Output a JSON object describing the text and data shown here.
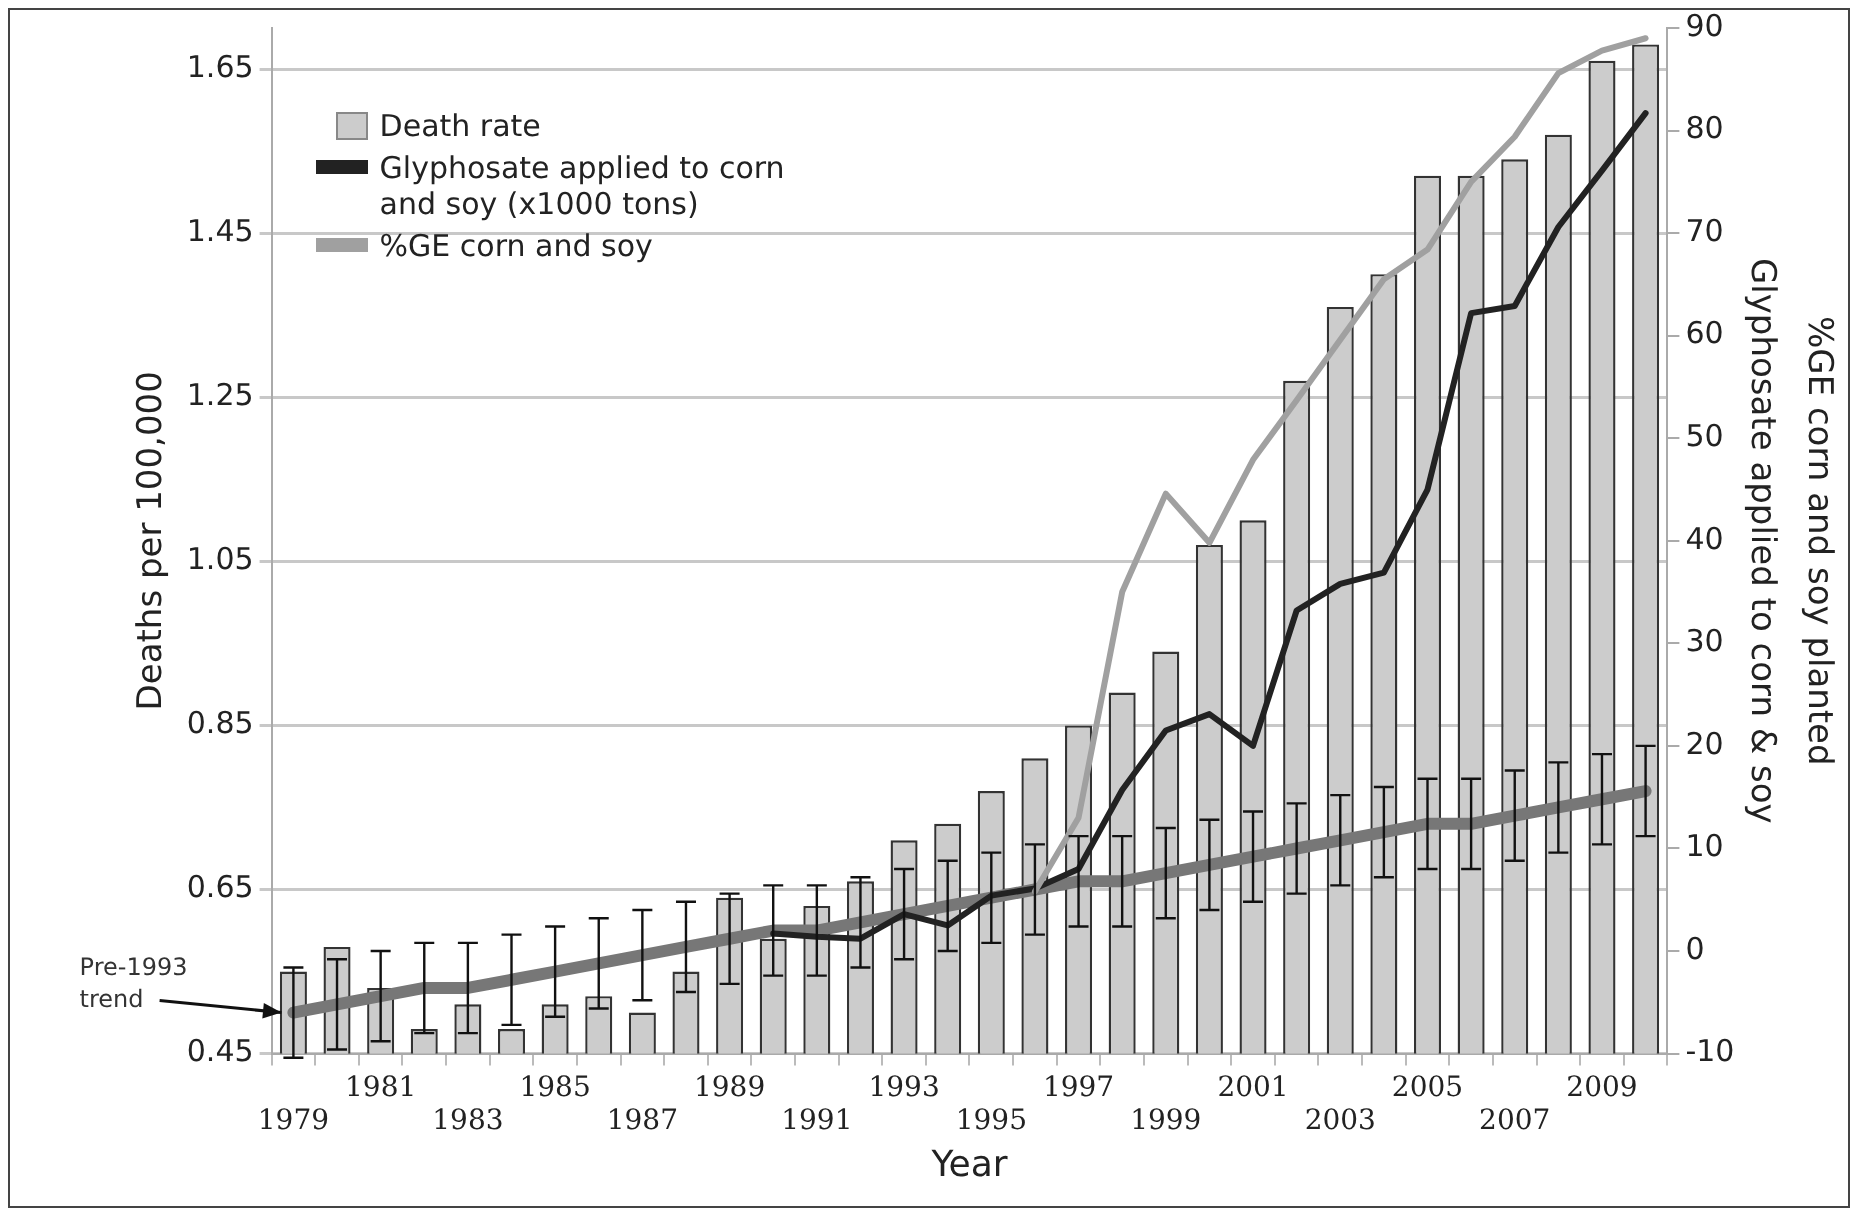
{
  "chart_data": {
    "type": "bar",
    "xlabel": "Year",
    "ylabel": "Deaths per 100,000",
    "y2label": "Glyphosate applied to corn & soy",
    "annotations": [
      "%GE corn and soy planted"
    ],
    "categories": [
      "1979",
      null,
      "1981",
      null,
      "1983",
      null,
      "1985",
      null,
      "1987",
      null,
      "1989",
      null,
      "1991",
      null,
      "1993",
      null,
      "1995",
      null,
      "1997",
      null,
      "1999",
      null,
      "2001",
      null,
      "2003",
      null,
      "2005",
      null,
      "2007",
      null,
      "2009",
      null
    ],
    "series": [
      {
        "name": "Death rate",
        "color": "#cccccc",
        "values": [
          0.55,
          0.58,
          0.53,
          0.48,
          0.51,
          0.48,
          0.51,
          0.52,
          0.5,
          0.55,
          0.64,
          0.59,
          0.63,
          0.66,
          0.71,
          0.73,
          0.77,
          0.81,
          0.85,
          0.89,
          0.94,
          1.07,
          1.1,
          1.27,
          1.36,
          1.4,
          1.52,
          1.52,
          1.54,
          1.57,
          1.66,
          1.68
        ]
      },
      {
        "type": "line",
        "name": "Glyphosate applied to corn and soy (x1000 tons)",
        "color": "#222222",
        "axis": "y2",
        "values": [
          null,
          null,
          null,
          null,
          null,
          null,
          null,
          null,
          null,
          null,
          null,
          1.7,
          1.4,
          1.2,
          3.6,
          2.5,
          5.4,
          6.1,
          8,
          15.7,
          21.5,
          23.1,
          20,
          33.2,
          35.8,
          36.9,
          45,
          62.2,
          62.9,
          70.6,
          76.1,
          81.7
        ]
      },
      {
        "type": "line",
        "name": "%GE corn and soy",
        "color": "#a0a0a0",
        "axis": "y2",
        "values": [
          null,
          null,
          null,
          null,
          null,
          null,
          null,
          null,
          null,
          null,
          null,
          null,
          null,
          null,
          null,
          null,
          null,
          5.8,
          13,
          35,
          44.6,
          39.8,
          47.9,
          53.7,
          59.6,
          65.5,
          68.4,
          75,
          79.4,
          85.6,
          87.8,
          89
        ]
      },
      {
        "type": "line",
        "name": "Pre-1993 trend",
        "color": "#777777",
        "values": [
          0.5,
          0.51,
          0.52,
          0.53,
          0.53,
          0.54,
          0.55,
          0.56,
          0.57,
          0.58,
          0.59,
          0.6,
          0.6,
          0.61,
          0.62,
          0.63,
          0.64,
          0.65,
          0.66,
          0.66,
          0.67,
          0.68,
          0.69,
          0.7,
          0.71,
          0.72,
          0.73,
          0.73,
          0.74,
          0.75,
          0.76,
          0.77
        ],
        "errors": [
          0.055,
          0.055,
          0.055,
          0.055,
          0.055,
          0.055,
          0.055,
          0.055,
          0.055,
          0.055,
          0.055,
          0.055,
          0.055,
          0.055,
          0.055,
          0.055,
          0.055,
          0.055,
          0.055,
          0.055,
          0.055,
          0.055,
          0.055,
          0.055,
          0.055,
          0.055,
          0.055,
          0.055,
          0.055,
          0.055,
          0.055,
          0.055
        ]
      }
    ],
    "ylim": [
      0.45,
      1.7
    ],
    "yticks": [
      0.45,
      0.65,
      0.85,
      1.05,
      1.25,
      1.45,
      1.65
    ],
    "y2lim": [
      -10,
      90
    ],
    "y2ticks": [
      -10,
      0,
      10,
      20,
      30,
      40,
      50,
      60,
      70,
      80,
      90
    ],
    "grid": "y",
    "legend": "top left",
    "marker": "none",
    "line_style": "solid"
  }
}
